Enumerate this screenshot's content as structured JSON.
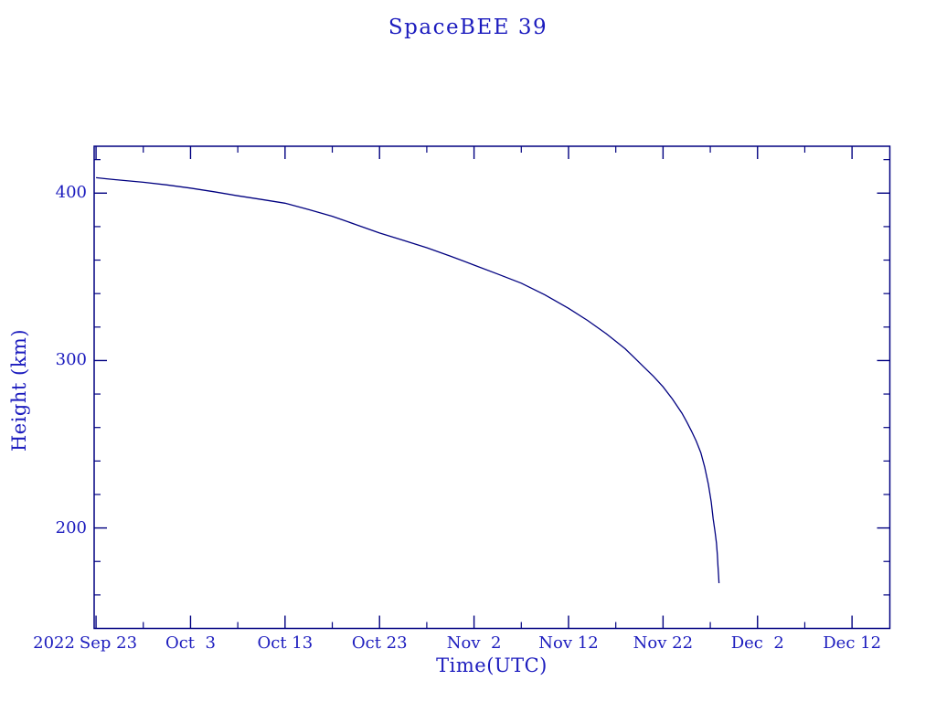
{
  "chart": {
    "title": "SpaceBEE 39",
    "xlabel": "Time(UTC)",
    "ylabel": "Height (km)",
    "year_label": "2022"
  },
  "colors": {
    "background": "#ffffff",
    "line": "#000080",
    "text": "#1c1cbe"
  },
  "chart_data": {
    "type": "line",
    "title": "SpaceBEE 39",
    "xlabel": "Time(UTC)",
    "ylabel": "Height (km)",
    "x_unit": "days since 2022 Sep 23 (UTC)",
    "xlim": [
      -0.2,
      84.0
    ],
    "ylim": [
      140,
      428
    ],
    "grid": false,
    "legend_position": "none",
    "x_ticks": [
      {
        "day": 0,
        "label": "Sep 23",
        "label_day": 1.3
      },
      {
        "day": 10,
        "label": "Oct  3"
      },
      {
        "day": 20,
        "label": "Oct 13"
      },
      {
        "day": 30,
        "label": "Oct 23"
      },
      {
        "day": 40,
        "label": "Nov  2"
      },
      {
        "day": 50,
        "label": "Nov 12"
      },
      {
        "day": 60,
        "label": "Nov 22"
      },
      {
        "day": 70,
        "label": "Dec  2"
      },
      {
        "day": 80,
        "label": "Dec 12"
      }
    ],
    "x_minor_ticks": [
      5,
      15,
      25,
      35,
      45,
      55,
      65,
      75
    ],
    "y_ticks": [
      {
        "km": 400,
        "label": "400"
      },
      {
        "km": 300,
        "label": "300"
      },
      {
        "km": 200,
        "label": "200"
      }
    ],
    "y_minor_ticks": [
      420,
      380,
      360,
      340,
      320,
      280,
      260,
      240,
      220,
      180,
      160
    ],
    "series": [
      {
        "name": "SpaceBEE 39 orbital height",
        "points": [
          [
            0,
            409.2
          ],
          [
            1,
            408.6
          ],
          [
            2.5,
            407.8
          ],
          [
            5,
            406.5
          ],
          [
            7.5,
            404.9
          ],
          [
            10,
            403
          ],
          [
            12.5,
            400.8
          ],
          [
            15,
            398.4
          ],
          [
            17.5,
            396.2
          ],
          [
            20,
            394
          ],
          [
            22.5,
            390.2
          ],
          [
            25,
            386.2
          ],
          [
            27.5,
            381.2
          ],
          [
            30,
            376.2
          ],
          [
            32.5,
            371.8
          ],
          [
            35,
            367.4
          ],
          [
            37.5,
            362.4
          ],
          [
            40,
            357
          ],
          [
            42.5,
            351.7
          ],
          [
            45,
            346.2
          ],
          [
            47.5,
            339.2
          ],
          [
            50,
            331.2
          ],
          [
            52,
            324
          ],
          [
            54,
            316
          ],
          [
            55,
            311.5
          ],
          [
            56,
            307
          ],
          [
            57,
            301.5
          ],
          [
            58,
            296
          ],
          [
            59,
            290.5
          ],
          [
            60,
            284.3
          ],
          [
            61,
            277
          ],
          [
            62,
            268.5
          ],
          [
            62.5,
            263.5
          ],
          [
            63,
            258
          ],
          [
            63.5,
            252
          ],
          [
            64,
            245
          ],
          [
            64.4,
            236.5
          ],
          [
            64.8,
            226
          ],
          [
            65.1,
            215.5
          ],
          [
            65.3,
            205.5
          ],
          [
            65.5,
            198
          ],
          [
            65.65,
            191
          ],
          [
            65.75,
            184
          ],
          [
            65.82,
            177
          ],
          [
            65.88,
            171
          ],
          [
            65.92,
            167
          ]
        ]
      }
    ]
  }
}
